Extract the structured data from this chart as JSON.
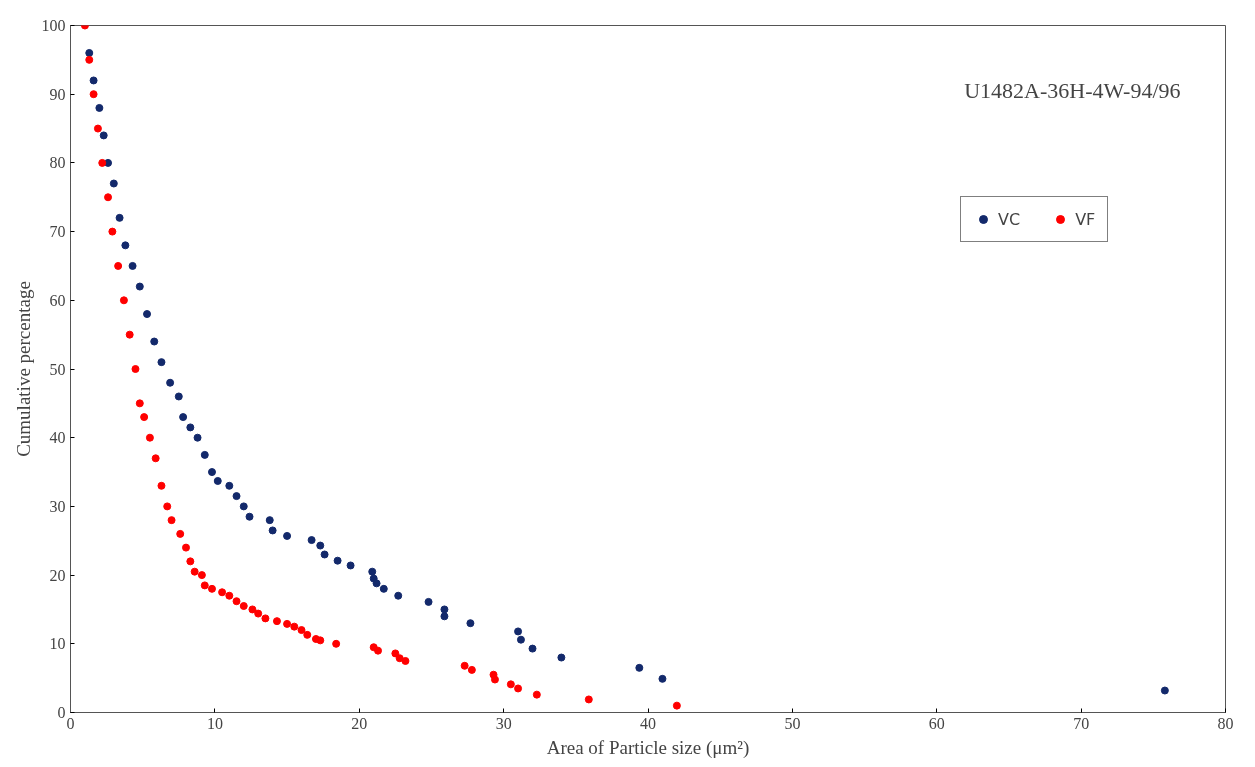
{
  "chart_data": {
    "type": "scatter",
    "xlabel": "Area of Particle size (μm²)",
    "ylabel": "Cumulative percentage",
    "annotations": [
      "U1482A-36H-4W-94/96"
    ],
    "xlim": [
      0,
      80
    ],
    "xticks": [
      0,
      10,
      20,
      30,
      40,
      50,
      60,
      70,
      80
    ],
    "ylim": [
      0,
      100
    ],
    "yticks": [
      0,
      10,
      20,
      30,
      40,
      50,
      60,
      70,
      80,
      90,
      100
    ],
    "grid": false,
    "legend": "top right",
    "marker": "circle",
    "series": [
      {
        "name": "VC",
        "color": "#13296b",
        "x": [
          1.3,
          1.6,
          2.0,
          2.3,
          2.6,
          3.0,
          3.4,
          3.8,
          4.3,
          4.8,
          5.3,
          5.8,
          6.3,
          6.9,
          7.5,
          7.8,
          8.3,
          8.8,
          9.3,
          9.8,
          10.2,
          11.0,
          11.5,
          12.0,
          12.4,
          13.8,
          14.0,
          15.0,
          16.7,
          17.3,
          17.6,
          18.5,
          19.4,
          20.9,
          21.0,
          21.2,
          21.7,
          22.7,
          24.8,
          25.9,
          25.9,
          27.7,
          31.0,
          31.2,
          32.0,
          34.0,
          39.4,
          41.0,
          75.8
        ],
        "values": [
          96,
          92,
          88,
          84,
          80,
          77,
          72,
          68,
          65,
          62,
          58,
          54,
          51,
          48,
          46,
          43,
          41.5,
          40,
          37.5,
          35,
          33.7,
          33,
          31.5,
          30,
          28.5,
          28,
          26.5,
          25.7,
          25.1,
          24.3,
          23,
          22.1,
          21.4,
          20.5,
          19.5,
          18.8,
          18,
          17,
          16.1,
          15,
          14,
          13,
          11.8,
          10.6,
          9.3,
          8,
          6.5,
          4.9,
          3.2
        ]
      },
      {
        "name": "VF",
        "color": "#ff0000",
        "x": [
          1.0,
          1.3,
          1.6,
          1.9,
          2.2,
          2.6,
          2.9,
          3.3,
          3.7,
          4.1,
          4.5,
          4.8,
          5.1,
          5.5,
          5.9,
          6.3,
          6.7,
          7.0,
          7.6,
          8.0,
          8.3,
          8.6,
          9.1,
          9.3,
          9.8,
          10.5,
          11.0,
          11.5,
          12.0,
          12.6,
          13.0,
          13.5,
          14.3,
          15.0,
          15.5,
          16.0,
          16.4,
          17.0,
          17.3,
          18.4,
          21.0,
          21.3,
          22.5,
          22.8,
          23.2,
          27.3,
          27.8,
          29.3,
          29.4,
          30.5,
          31.0,
          32.3,
          35.9,
          42.0
        ],
        "values": [
          100,
          95,
          90,
          85,
          80,
          75,
          70,
          65,
          60,
          55,
          50,
          45,
          43,
          40,
          37,
          33,
          30,
          28,
          26,
          24,
          22,
          20.5,
          20,
          18.5,
          18,
          17.5,
          17,
          16.2,
          15.5,
          15,
          14.4,
          13.7,
          13.3,
          12.9,
          12.5,
          12,
          11.3,
          10.7,
          10.5,
          10,
          9.5,
          9,
          8.6,
          7.9,
          7.5,
          6.8,
          6.2,
          5.5,
          4.8,
          4.1,
          3.5,
          2.6,
          1.9,
          1.0
        ]
      }
    ]
  }
}
